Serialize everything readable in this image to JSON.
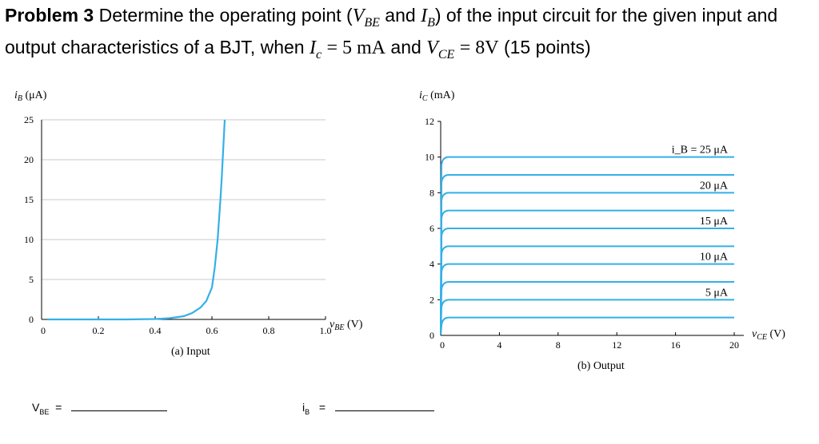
{
  "problem": {
    "number_label": "Problem 3",
    "text_1": "Determine the operating point (",
    "text_and": " and ",
    "text_2": ") of the input circuit for the given input and output characteristics of a BJT, when ",
    "ic_eq": "= 5 mA",
    "text_and2": " and ",
    "vce_eq": "= 8V",
    "points": " (15 points)"
  },
  "chart_data": [
    {
      "type": "line",
      "caption": "(a) Input",
      "ylabel": "i_B (μA)",
      "xlabel": "v_BE (V)",
      "xlim": [
        0,
        1.0
      ],
      "ylim": [
        0,
        25
      ],
      "x_ticks": [
        "0",
        "0.2",
        "0.4",
        "0.6",
        "0.8",
        "1.0"
      ],
      "y_ticks": [
        "0",
        "5",
        "10",
        "15",
        "20",
        "25"
      ],
      "grid": true,
      "line_color": "#33b0e8",
      "series": [
        {
          "x": [
            0.02,
            0.2,
            0.3,
            0.4,
            0.45,
            0.5,
            0.53,
            0.56,
            0.58,
            0.6,
            0.61,
            0.62,
            0.63,
            0.635,
            0.64,
            0.645
          ],
          "y": [
            0,
            0,
            0,
            0.05,
            0.15,
            0.4,
            0.8,
            1.5,
            2.3,
            4,
            6.5,
            10,
            15,
            18,
            21.5,
            25
          ]
        }
      ]
    },
    {
      "type": "line",
      "caption": "(b) Output",
      "ylabel": "i_C (mA)",
      "xlabel": "v_CE (V)",
      "xlim": [
        0,
        20
      ],
      "ylim": [
        0,
        12
      ],
      "x_ticks": [
        "0",
        "4",
        "8",
        "12",
        "16",
        "20"
      ],
      "y_ticks": [
        "0",
        "2",
        "4",
        "6",
        "8",
        "10",
        "12"
      ],
      "grid": true,
      "line_color": "#33b0e8",
      "series": [
        {
          "name": "",
          "value": 1
        },
        {
          "name": "5 μA",
          "value": 2
        },
        {
          "name": "",
          "value": 3
        },
        {
          "name": "10 μA",
          "value": 4
        },
        {
          "name": "",
          "value": 5
        },
        {
          "name": "15 μA",
          "value": 6
        },
        {
          "name": "",
          "value": 7
        },
        {
          "name": "20 μA",
          "value": 8
        },
        {
          "name": "",
          "value": 9
        },
        {
          "name": "i_B = 25 μA",
          "value": 10
        }
      ]
    }
  ],
  "answers": {
    "vbe_label": "V",
    "vbe_sub": "BE",
    "ib_label": "i",
    "ib_sub": "B",
    "equals": "="
  }
}
